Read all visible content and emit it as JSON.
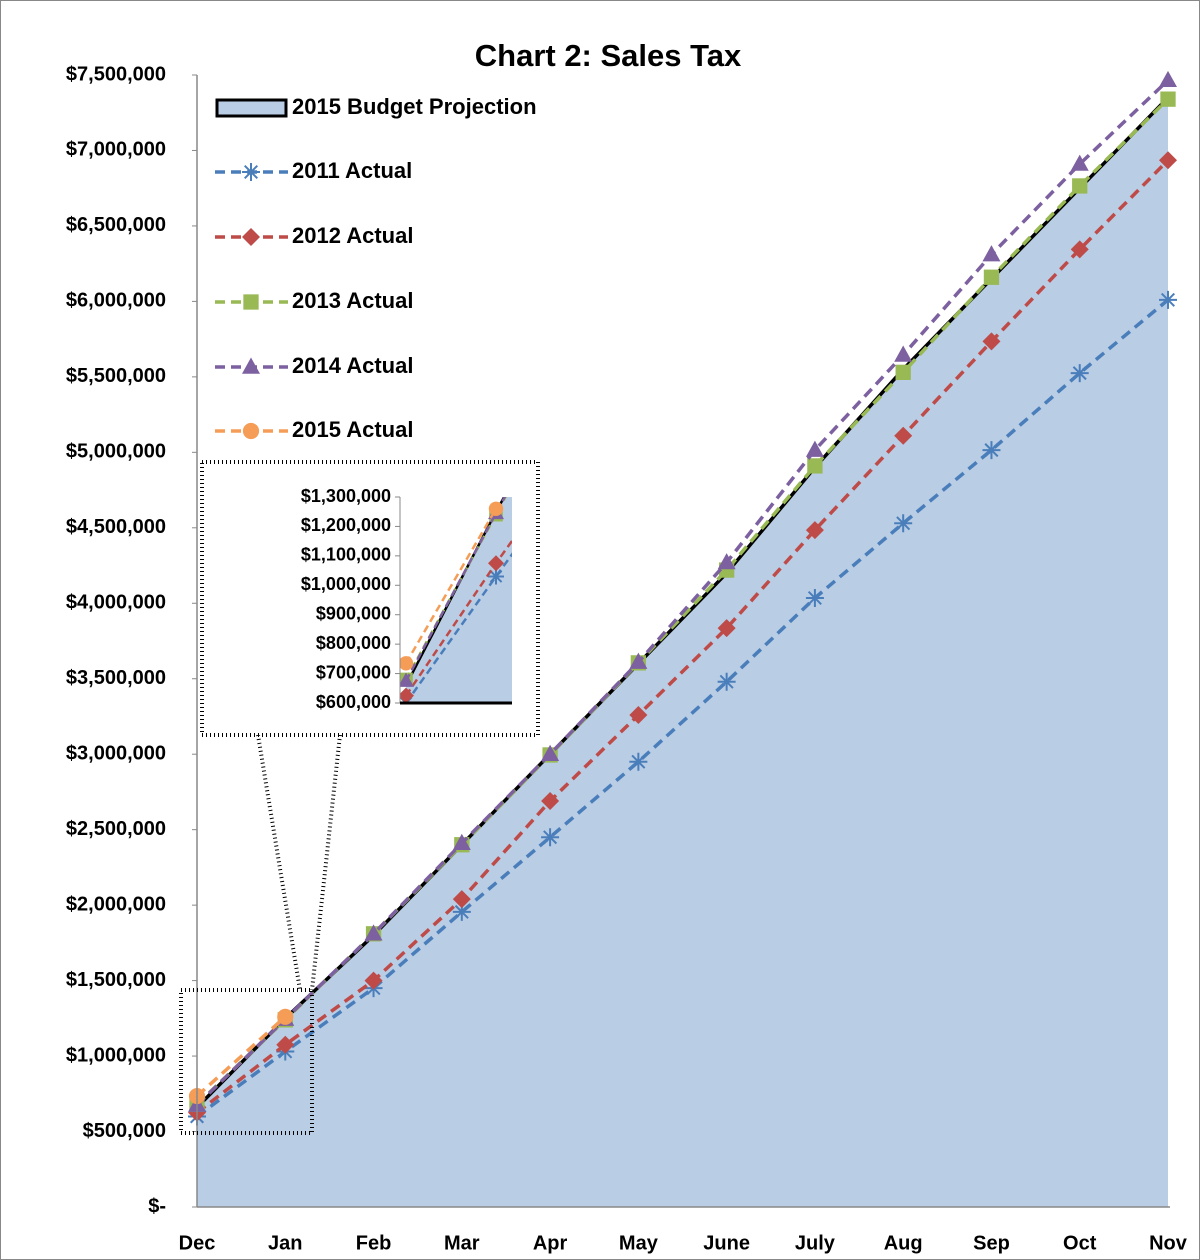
{
  "chart_data": {
    "type": "line",
    "title": "Chart 2: Sales Tax",
    "categories": [
      "Dec",
      "Jan",
      "Feb",
      "Mar",
      "Apr",
      "May",
      "June",
      "July",
      "Aug",
      "Sep",
      "Oct",
      "Nov"
    ],
    "series": [
      {
        "name": "2015 Budget Projection",
        "type": "area",
        "color": "#b9cde5",
        "edge": "#000000",
        "values": [
          660000,
          1250000,
          1800000,
          2400000,
          3000000,
          3600000,
          4200000,
          4900000,
          5550000,
          6150000,
          6750000,
          7350000
        ]
      },
      {
        "name": "2011 Actual",
        "color": "#4a7ebb",
        "marker": "asterisk",
        "values": [
          600000,
          1030000,
          1450000,
          1955000,
          2450000,
          2950000,
          3480000,
          4035000,
          4530000,
          5015000,
          5525000,
          6010000
        ]
      },
      {
        "name": "2012 Actual",
        "color": "#be4b48",
        "marker": "diamond",
        "values": [
          625000,
          1075000,
          1500000,
          2040000,
          2690000,
          3260000,
          3835000,
          4485000,
          5110000,
          5735000,
          6345000,
          6935000
        ]
      },
      {
        "name": "2013 Actual",
        "color": "#98b954",
        "marker": "square",
        "values": [
          680000,
          1240000,
          1810000,
          2400000,
          2995000,
          3605000,
          4220000,
          4910000,
          5530000,
          6160000,
          6765000,
          7340000
        ]
      },
      {
        "name": "2014 Actual",
        "color": "#7d60a0",
        "marker": "triangle",
        "values": [
          675000,
          1245000,
          1810000,
          2410000,
          3000000,
          3610000,
          4270000,
          5015000,
          5645000,
          6310000,
          6910000,
          7465000
        ]
      },
      {
        "name": "2015 Actual",
        "color": "#f59d56",
        "marker": "circle",
        "values": [
          735000,
          1260000,
          null,
          null,
          null,
          null,
          null,
          null,
          null,
          null,
          null,
          null
        ]
      }
    ],
    "ylim": [
      0,
      7500000
    ],
    "yticks": [
      {
        "value": 0,
        "label": "$-"
      },
      {
        "value": 500000,
        "label": "$500,000"
      },
      {
        "value": 1000000,
        "label": "$1,000,000"
      },
      {
        "value": 1500000,
        "label": "$1,500,000"
      },
      {
        "value": 2000000,
        "label": "$2,000,000"
      },
      {
        "value": 2500000,
        "label": "$2,500,000"
      },
      {
        "value": 3000000,
        "label": "$3,000,000"
      },
      {
        "value": 3500000,
        "label": "$3,500,000"
      },
      {
        "value": 4000000,
        "label": "$4,000,000"
      },
      {
        "value": 4500000,
        "label": "$4,500,000"
      },
      {
        "value": 5000000,
        "label": "$5,000,000"
      },
      {
        "value": 5500000,
        "label": "$5,500,000"
      },
      {
        "value": 6000000,
        "label": "$6,000,000"
      },
      {
        "value": 6500000,
        "label": "$6,500,000"
      },
      {
        "value": 7000000,
        "label": "$7,000,000"
      },
      {
        "value": 7500000,
        "label": "$7,500,000"
      }
    ],
    "grid": false,
    "legend": "upper left",
    "inset": {
      "ylim": [
        600000,
        1300000
      ],
      "yticks": [
        {
          "value": 600000,
          "label": "$600,000"
        },
        {
          "value": 700000,
          "label": "$700,000"
        },
        {
          "value": 800000,
          "label": "$800,000"
        },
        {
          "value": 900000,
          "label": "$900,000"
        },
        {
          "value": 1000000,
          "label": "$1,000,000"
        },
        {
          "value": 1100000,
          "label": "$1,100,000"
        },
        {
          "value": 1200000,
          "label": "$1,200,000"
        },
        {
          "value": 1300000,
          "label": "$1,300,000"
        }
      ]
    }
  }
}
